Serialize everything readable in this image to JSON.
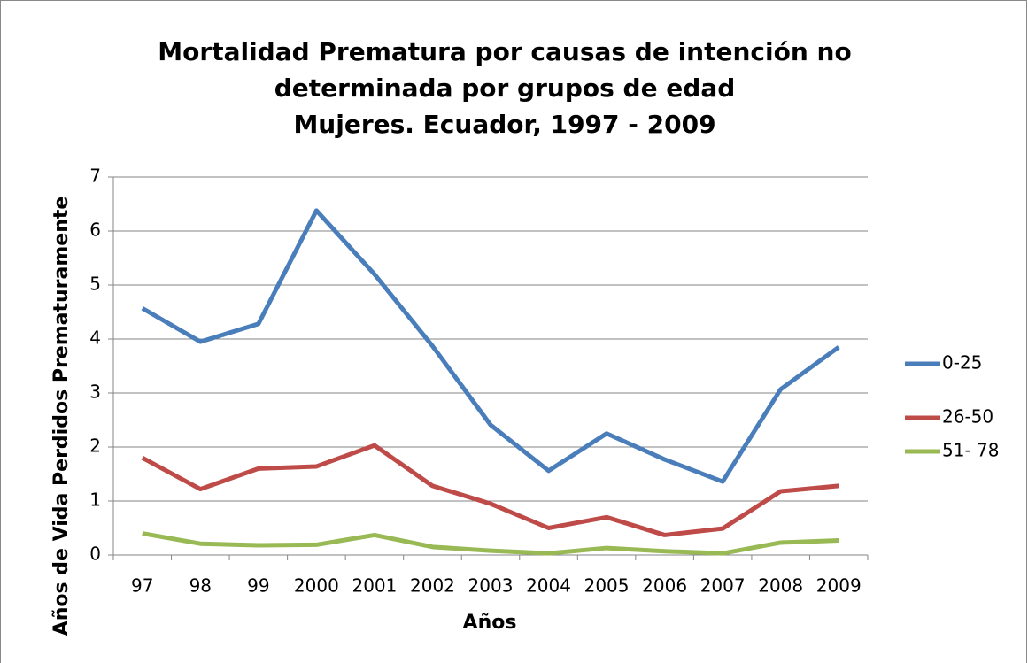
{
  "chart_data": {
    "type": "line",
    "title": [
      "Mortalidad Prematura por causas de intención no",
      "determinada por grupos de edad",
      "Mujeres. Ecuador, 1997 - 2009"
    ],
    "x_label": "Años",
    "y_label": "Años de Vida  Perdidos Prematuramente",
    "categories": [
      "97",
      "98",
      "99",
      "2000",
      "2001",
      "2002",
      "2003",
      "2004",
      "2005",
      "2006",
      "2007",
      "2008",
      "2009"
    ],
    "series": [
      {
        "name": "0-25",
        "color": "#4a7ebb",
        "values": [
          4.57,
          3.95,
          4.28,
          6.38,
          5.2,
          3.87,
          2.41,
          1.56,
          2.25,
          1.77,
          1.36,
          3.07,
          3.85
        ]
      },
      {
        "name": "26-50",
        "color": "#be4b48",
        "values": [
          1.8,
          1.22,
          1.6,
          1.64,
          2.03,
          1.28,
          0.95,
          0.5,
          0.7,
          0.37,
          0.49,
          1.18,
          1.28
        ]
      },
      {
        "name": "51- 78",
        "color": "#98b954",
        "values": [
          0.4,
          0.21,
          0.18,
          0.19,
          0.37,
          0.15,
          0.08,
          0.03,
          0.13,
          0.07,
          0.03,
          0.23,
          0.27
        ]
      }
    ],
    "ylim": [
      0,
      7
    ],
    "yticks": [
      0,
      1,
      2,
      3,
      4,
      5,
      6,
      7
    ],
    "grid": true,
    "legend": "right"
  }
}
